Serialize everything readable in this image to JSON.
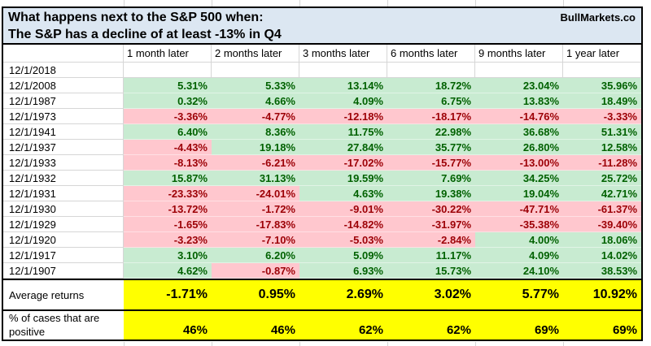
{
  "title": {
    "line1": "What happens next to the S&P 500 when:",
    "line2": "The S&P has a decline of at least -13% in Q4",
    "brand": "BullMarkets.co"
  },
  "table": {
    "columns": [
      "1 month later",
      "2 months later",
      "3 months later",
      "6 months later",
      "9 months later",
      "1 year later"
    ],
    "rows": [
      {
        "date": "12/1/2018",
        "values": [
          "",
          "",
          "",
          "",
          "",
          ""
        ]
      },
      {
        "date": "12/1/2008",
        "values": [
          "5.31%",
          "5.33%",
          "13.14%",
          "18.72%",
          "23.04%",
          "35.96%"
        ]
      },
      {
        "date": "12/1/1987",
        "values": [
          "0.32%",
          "4.66%",
          "4.09%",
          "6.75%",
          "13.83%",
          "18.49%"
        ]
      },
      {
        "date": "12/1/1973",
        "values": [
          "-3.36%",
          "-4.77%",
          "-12.18%",
          "-18.17%",
          "-14.76%",
          "-3.33%"
        ]
      },
      {
        "date": "12/1/1941",
        "values": [
          "6.40%",
          "8.36%",
          "11.75%",
          "22.98%",
          "36.68%",
          "51.31%"
        ]
      },
      {
        "date": "12/1/1937",
        "values": [
          "-4.43%",
          "19.18%",
          "27.84%",
          "35.77%",
          "26.80%",
          "12.58%"
        ]
      },
      {
        "date": "12/1/1933",
        "values": [
          "-8.13%",
          "-6.21%",
          "-17.02%",
          "-15.77%",
          "-13.00%",
          "-11.28%"
        ]
      },
      {
        "date": "12/1/1932",
        "values": [
          "15.87%",
          "31.13%",
          "19.59%",
          "7.69%",
          "34.25%",
          "25.72%"
        ]
      },
      {
        "date": "12/1/1931",
        "values": [
          "-23.33%",
          "-24.01%",
          "4.63%",
          "19.38%",
          "19.04%",
          "42.71%"
        ]
      },
      {
        "date": "12/1/1930",
        "values": [
          "-13.72%",
          "-1.72%",
          "-9.01%",
          "-30.22%",
          "-47.71%",
          "-61.37%"
        ]
      },
      {
        "date": "12/1/1929",
        "values": [
          "-1.65%",
          "-17.83%",
          "-14.82%",
          "-31.97%",
          "-35.38%",
          "-39.40%"
        ]
      },
      {
        "date": "12/1/1920",
        "values": [
          "-3.23%",
          "-7.10%",
          "-5.03%",
          "-2.84%",
          "4.00%",
          "18.06%"
        ]
      },
      {
        "date": "12/1/1917",
        "values": [
          "3.10%",
          "6.20%",
          "5.09%",
          "11.17%",
          "4.09%",
          "14.02%"
        ]
      },
      {
        "date": "12/1/1907",
        "values": [
          "4.62%",
          "-0.87%",
          "6.93%",
          "15.73%",
          "24.10%",
          "38.53%"
        ]
      }
    ],
    "average": {
      "label": "Average returns",
      "values": [
        "-1.71%",
        "0.95%",
        "2.69%",
        "3.02%",
        "5.77%",
        "10.92%"
      ]
    },
    "pct_positive": {
      "label": "% of cases that are positive",
      "values": [
        "46%",
        "46%",
        "62%",
        "62%",
        "69%",
        "69%"
      ]
    }
  },
  "colors": {
    "positive_bg": "#c8ebd1",
    "positive_text": "#006100",
    "negative_bg": "#ffc7ce",
    "negative_text": "#9c0006",
    "summary_bg": "#ffff00",
    "title_bg": "#dce7f2"
  }
}
